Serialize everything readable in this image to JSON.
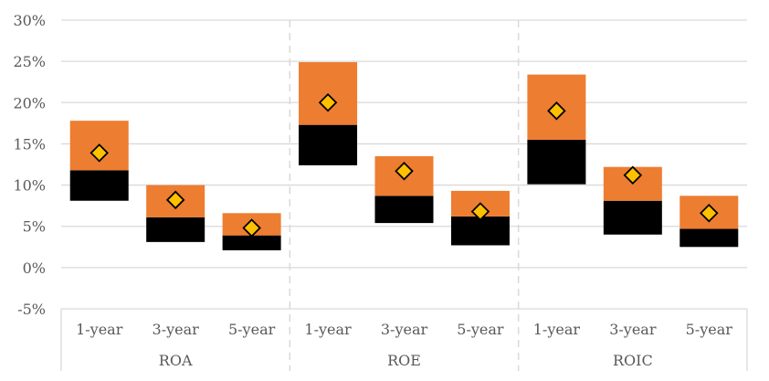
{
  "chart_data": {
    "type": "bar",
    "title": "",
    "xlabel": "",
    "ylabel": "",
    "ylim": [
      -0.05,
      0.3
    ],
    "yticks": [
      "-5%",
      "0%",
      "5%",
      "10%",
      "15%",
      "20%",
      "25%",
      "30%"
    ],
    "grid": true,
    "legend": "none",
    "groups": [
      "ROA",
      "ROE",
      "ROIC"
    ],
    "periods": [
      "1-year",
      "3-year",
      "5-year"
    ],
    "colors": {
      "lower_band": "#000000",
      "upper_band": "#ED7D31",
      "marker": "#FFC000",
      "grid": "#D9D9D9"
    },
    "points": [
      {
        "group": "ROA",
        "period": "1-year",
        "low": 0.081,
        "mid": 0.118,
        "high": 0.178,
        "marker": 0.139
      },
      {
        "group": "ROA",
        "period": "3-year",
        "low": 0.031,
        "mid": 0.061,
        "high": 0.1,
        "marker": 0.082
      },
      {
        "group": "ROA",
        "period": "5-year",
        "low": 0.021,
        "mid": 0.039,
        "high": 0.066,
        "marker": 0.048
      },
      {
        "group": "ROE",
        "period": "1-year",
        "low": 0.124,
        "mid": 0.173,
        "high": 0.249,
        "marker": 0.2
      },
      {
        "group": "ROE",
        "period": "3-year",
        "low": 0.054,
        "mid": 0.087,
        "high": 0.135,
        "marker": 0.117
      },
      {
        "group": "ROE",
        "period": "5-year",
        "low": 0.027,
        "mid": 0.062,
        "high": 0.093,
        "marker": 0.068
      },
      {
        "group": "ROIC",
        "period": "1-year",
        "low": 0.101,
        "mid": 0.155,
        "high": 0.234,
        "marker": 0.19
      },
      {
        "group": "ROIC",
        "period": "3-year",
        "low": 0.04,
        "mid": 0.081,
        "high": 0.122,
        "marker": 0.112
      },
      {
        "group": "ROIC",
        "period": "5-year",
        "low": 0.025,
        "mid": 0.047,
        "high": 0.087,
        "marker": 0.066
      }
    ]
  }
}
